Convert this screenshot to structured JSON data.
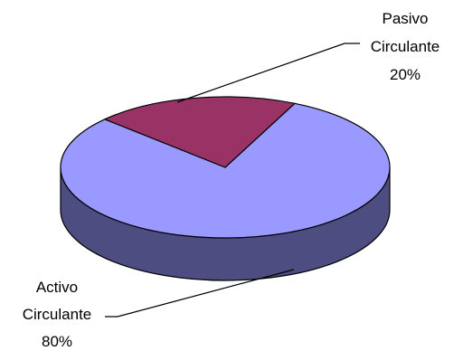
{
  "chart_data": {
    "type": "pie",
    "style": "3d",
    "title": "",
    "slices": [
      {
        "name_line1": "Activo",
        "name_line2": "Circulante",
        "value": 80,
        "label_pct": "80%",
        "color": "#9999ff",
        "side_color": "#4d4d82"
      },
      {
        "name_line1": "Pasivo",
        "name_line2": "Circulante",
        "value": 20,
        "label_pct": "20%",
        "color": "#993366",
        "side_color": "#5c1f3d"
      }
    ],
    "outline_color": "#000000",
    "legend": "none"
  }
}
